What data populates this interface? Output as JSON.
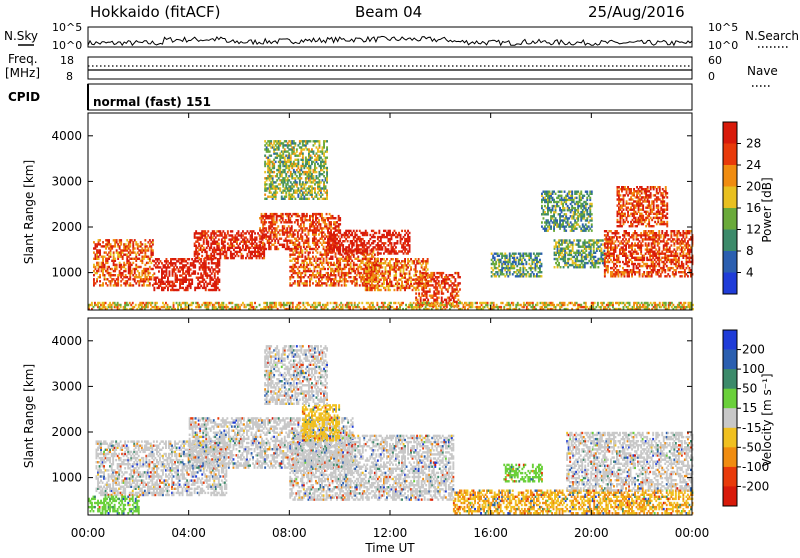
{
  "header": {
    "station": "Hokkaido (fitACF)",
    "beam": "Beam 04",
    "date": "25/Aug/2016"
  },
  "strips": {
    "nsky_label": "N.Sky",
    "nsky_ticks": [
      "10^5",
      "10^0"
    ],
    "nsearch_label": "N.Search",
    "nsearch_ticks": [
      "10^5",
      "10^0"
    ],
    "freq_label_1": "Freq.",
    "freq_label_2": "[MHz]",
    "freq_ticks": [
      "18",
      "8"
    ],
    "nave_label": "Nave",
    "nave_ticks": [
      "60",
      "0"
    ],
    "cpid_label": "CPID",
    "cpid_text": "normal (fast) 151"
  },
  "x_axis": {
    "label": "Time UT",
    "ticks": [
      "00:00",
      "04:00",
      "08:00",
      "12:00",
      "16:00",
      "20:00",
      "00:00"
    ]
  },
  "chart_data": [
    {
      "type": "heatmap",
      "name": "Power",
      "ylabel": "Slant Range [km]",
      "yticks": [
        "1000",
        "2000",
        "3000",
        "4000"
      ],
      "ylim": [
        180,
        4500
      ],
      "xlim_hours": [
        0,
        24
      ],
      "colorbar_label": "Power [dB]",
      "colorbar_ticks": [
        "4",
        "8",
        "12",
        "16",
        "20",
        "24",
        "28"
      ],
      "colorbar_colors": [
        "#1f3cd8",
        "#2b5fb0",
        "#3c8a6a",
        "#6aaa3a",
        "#e8c020",
        "#f08c10",
        "#e83a0a",
        "#d81a0a"
      ],
      "regions": [
        {
          "t0": 0.2,
          "t1": 2.6,
          "r0": 700,
          "r1": 1700,
          "level": 0.8
        },
        {
          "t0": 2.6,
          "t1": 5.2,
          "r0": 600,
          "r1": 1300,
          "level": 1.0
        },
        {
          "t0": 4.2,
          "t1": 7.0,
          "r0": 1300,
          "r1": 1900,
          "level": 0.95
        },
        {
          "t0": 6.8,
          "t1": 10.0,
          "r0": 1500,
          "r1": 2300,
          "level": 0.85
        },
        {
          "t0": 8.0,
          "t1": 11.5,
          "r0": 700,
          "r1": 1500,
          "level": 0.8
        },
        {
          "t0": 9.5,
          "t1": 12.8,
          "r0": 1400,
          "r1": 1900,
          "level": 1.0
        },
        {
          "t0": 11.0,
          "t1": 13.5,
          "r0": 600,
          "r1": 1300,
          "level": 0.75
        },
        {
          "t0": 13.0,
          "t1": 14.8,
          "r0": 250,
          "r1": 1000,
          "level": 0.85
        },
        {
          "t0": 16.0,
          "t1": 18.0,
          "r0": 900,
          "r1": 1400,
          "level": 0.35
        },
        {
          "t0": 18.5,
          "t1": 20.5,
          "r0": 1100,
          "r1": 1700,
          "level": 0.4
        },
        {
          "t0": 20.5,
          "t1": 24.0,
          "r0": 900,
          "r1": 1900,
          "level": 0.85
        },
        {
          "t0": 21.0,
          "t1": 23.0,
          "r0": 2000,
          "r1": 2900,
          "level": 0.85
        },
        {
          "t0": 0.0,
          "t1": 24.0,
          "r0": 180,
          "r1": 330,
          "level": 0.6
        },
        {
          "t0": 7.0,
          "t1": 9.5,
          "r0": 2600,
          "r1": 3900,
          "level": 0.45
        },
        {
          "t0": 18.0,
          "t1": 20.0,
          "r0": 1900,
          "r1": 2800,
          "level": 0.35
        }
      ]
    },
    {
      "type": "heatmap",
      "name": "Velocity",
      "ylabel": "Slant Range [km]",
      "yticks": [
        "1000",
        "2000",
        "3000",
        "4000"
      ],
      "ylim": [
        180,
        4500
      ],
      "xlim_hours": [
        0,
        24
      ],
      "colorbar_label": "Velocity [m s⁻¹]",
      "colorbar_ticks": [
        "200",
        "100",
        "50",
        "15",
        "-15",
        "-50",
        "-100",
        "-200"
      ],
      "colorbar_colors": [
        "#1f3cd8",
        "#2b5fb0",
        "#3c8a6a",
        "#6ad03a",
        "#c8c8c8",
        "#f0c020",
        "#f08c10",
        "#e83a0a",
        "#d81a0a"
      ],
      "regions": [
        {
          "t0": 0.3,
          "t1": 5.5,
          "r0": 600,
          "r1": 1800,
          "level": 0.5
        },
        {
          "t0": 4.0,
          "t1": 10.5,
          "r0": 1200,
          "r1": 2300,
          "level": 0.5
        },
        {
          "t0": 8.0,
          "t1": 14.5,
          "r0": 500,
          "r1": 1900,
          "level": 0.5
        },
        {
          "t0": 8.5,
          "t1": 10.0,
          "r0": 1800,
          "r1": 2600,
          "level": 0.62
        },
        {
          "t0": 14.5,
          "t1": 24.0,
          "r0": 200,
          "r1": 700,
          "level": 0.66
        },
        {
          "t0": 19.0,
          "t1": 24.0,
          "r0": 700,
          "r1": 2000,
          "level": 0.5
        },
        {
          "t0": 0.0,
          "t1": 2.0,
          "r0": 200,
          "r1": 600,
          "level": 0.38
        },
        {
          "t0": 16.5,
          "t1": 18.0,
          "r0": 900,
          "r1": 1300,
          "level": 0.38
        },
        {
          "t0": 7.0,
          "t1": 9.5,
          "r0": 2600,
          "r1": 3900,
          "level": 0.5
        }
      ]
    }
  ]
}
